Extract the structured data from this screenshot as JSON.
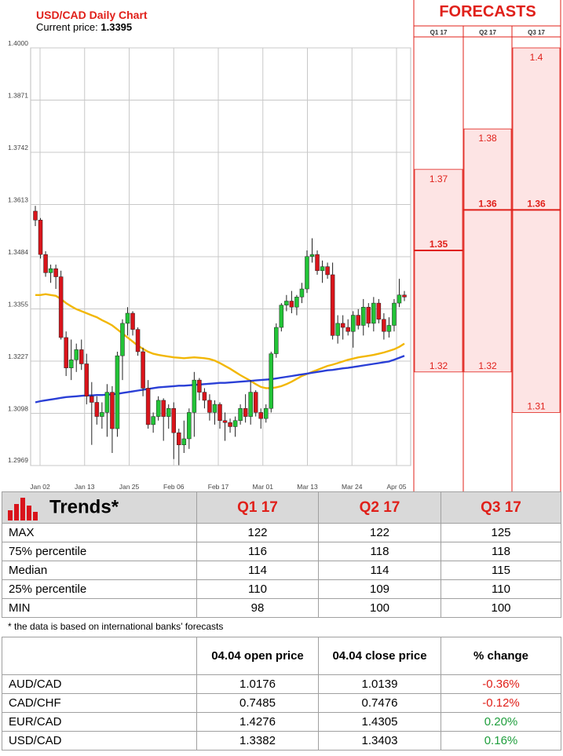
{
  "chart": {
    "title": "USD/CAD Daily Chart",
    "price_label": "Current price:",
    "price_value": "1.3395"
  },
  "forecasts": {
    "title": "FORECASTS",
    "quarters": [
      "Q1 17",
      "Q2 17",
      "Q3 17"
    ],
    "q1": {
      "max": "1.37",
      "median": "1.35",
      "min": "1.32"
    },
    "q2": {
      "max": "1.38",
      "median": "1.36",
      "min": "1.32"
    },
    "q3": {
      "max": "1.4",
      "median": "1.36",
      "min": "1.31"
    }
  },
  "chart_data": {
    "type": "candlestick",
    "title": "USD/CAD Daily Chart",
    "xlabel": "",
    "ylabel": "",
    "ylim": [
      1.2969,
      1.4
    ],
    "y_ticks": [
      "1.4000",
      "1.3871",
      "1.3742",
      "1.3613",
      "1.3484",
      "1.3355",
      "1.3227",
      "1.3098",
      "1.2969"
    ],
    "x_ticks": [
      "Jan 02",
      "Jan 13",
      "Jan 25",
      "Feb 06",
      "Feb 17",
      "Mar 01",
      "Mar 13",
      "Mar 24",
      "Apr 05"
    ],
    "grid": true,
    "up_color": "#22c437",
    "down_color": "#d9141b",
    "candles": [
      {
        "o": 1.3597,
        "h": 1.361,
        "l": 1.356,
        "c": 1.3575
      },
      {
        "o": 1.3575,
        "h": 1.358,
        "l": 1.348,
        "c": 1.349
      },
      {
        "o": 1.349,
        "h": 1.3498,
        "l": 1.3435,
        "c": 1.3445
      },
      {
        "o": 1.3445,
        "h": 1.3465,
        "l": 1.342,
        "c": 1.3455
      },
      {
        "o": 1.3455,
        "h": 1.3465,
        "l": 1.3405,
        "c": 1.3435
      },
      {
        "o": 1.3435,
        "h": 1.345,
        "l": 1.328,
        "c": 1.3285
      },
      {
        "o": 1.3285,
        "h": 1.33,
        "l": 1.319,
        "c": 1.321
      },
      {
        "o": 1.321,
        "h": 1.328,
        "l": 1.318,
        "c": 1.323
      },
      {
        "o": 1.323,
        "h": 1.327,
        "l": 1.32,
        "c": 1.3255
      },
      {
        "o": 1.3255,
        "h": 1.328,
        "l": 1.3205,
        "c": 1.322
      },
      {
        "o": 1.322,
        "h": 1.3245,
        "l": 1.312,
        "c": 1.314
      },
      {
        "o": 1.314,
        "h": 1.3175,
        "l": 1.302,
        "c": 1.3125
      },
      {
        "o": 1.3125,
        "h": 1.314,
        "l": 1.307,
        "c": 1.309
      },
      {
        "o": 1.309,
        "h": 1.3125,
        "l": 1.306,
        "c": 1.31
      },
      {
        "o": 1.31,
        "h": 1.317,
        "l": 1.304,
        "c": 1.315
      },
      {
        "o": 1.315,
        "h": 1.3165,
        "l": 1.3,
        "c": 1.306
      },
      {
        "o": 1.306,
        "h": 1.325,
        "l": 1.304,
        "c": 1.324
      },
      {
        "o": 1.324,
        "h": 1.333,
        "l": 1.318,
        "c": 1.332
      },
      {
        "o": 1.332,
        "h": 1.336,
        "l": 1.329,
        "c": 1.3345
      },
      {
        "o": 1.3345,
        "h": 1.335,
        "l": 1.329,
        "c": 1.3305
      },
      {
        "o": 1.3305,
        "h": 1.331,
        "l": 1.324,
        "c": 1.325
      },
      {
        "o": 1.325,
        "h": 1.326,
        "l": 1.314,
        "c": 1.316
      },
      {
        "o": 1.316,
        "h": 1.318,
        "l": 1.306,
        "c": 1.307
      },
      {
        "o": 1.307,
        "h": 1.31,
        "l": 1.305,
        "c": 1.309
      },
      {
        "o": 1.309,
        "h": 1.314,
        "l": 1.308,
        "c": 1.313
      },
      {
        "o": 1.313,
        "h": 1.3135,
        "l": 1.303,
        "c": 1.309
      },
      {
        "o": 1.309,
        "h": 1.312,
        "l": 1.306,
        "c": 1.311
      },
      {
        "o": 1.311,
        "h": 1.3125,
        "l": 1.2985,
        "c": 1.305
      },
      {
        "o": 1.305,
        "h": 1.306,
        "l": 1.297,
        "c": 1.302
      },
      {
        "o": 1.302,
        "h": 1.308,
        "l": 1.3,
        "c": 1.3035
      },
      {
        "o": 1.3035,
        "h": 1.311,
        "l": 1.301,
        "c": 1.31
      },
      {
        "o": 1.31,
        "h": 1.32,
        "l": 1.304,
        "c": 1.318
      },
      {
        "o": 1.318,
        "h": 1.3185,
        "l": 1.313,
        "c": 1.315
      },
      {
        "o": 1.315,
        "h": 1.316,
        "l": 1.311,
        "c": 1.313
      },
      {
        "o": 1.313,
        "h": 1.3145,
        "l": 1.308,
        "c": 1.31
      },
      {
        "o": 1.31,
        "h": 1.313,
        "l": 1.307,
        "c": 1.312
      },
      {
        "o": 1.312,
        "h": 1.3125,
        "l": 1.306,
        "c": 1.308
      },
      {
        "o": 1.308,
        "h": 1.31,
        "l": 1.303,
        "c": 1.3075
      },
      {
        "o": 1.3075,
        "h": 1.3085,
        "l": 1.305,
        "c": 1.3065
      },
      {
        "o": 1.3065,
        "h": 1.309,
        "l": 1.304,
        "c": 1.308
      },
      {
        "o": 1.308,
        "h": 1.312,
        "l": 1.307,
        "c": 1.311
      },
      {
        "o": 1.311,
        "h": 1.3145,
        "l": 1.3075,
        "c": 1.309
      },
      {
        "o": 1.309,
        "h": 1.318,
        "l": 1.307,
        "c": 1.315
      },
      {
        "o": 1.315,
        "h": 1.3155,
        "l": 1.309,
        "c": 1.31
      },
      {
        "o": 1.31,
        "h": 1.311,
        "l": 1.306,
        "c": 1.3085
      },
      {
        "o": 1.3085,
        "h": 1.312,
        "l": 1.3075,
        "c": 1.311
      },
      {
        "o": 1.311,
        "h": 1.325,
        "l": 1.31,
        "c": 1.3245
      },
      {
        "o": 1.3245,
        "h": 1.332,
        "l": 1.3235,
        "c": 1.331
      },
      {
        "o": 1.331,
        "h": 1.337,
        "l": 1.33,
        "c": 1.3365
      },
      {
        "o": 1.3365,
        "h": 1.339,
        "l": 1.335,
        "c": 1.3375
      },
      {
        "o": 1.3375,
        "h": 1.34,
        "l": 1.3345,
        "c": 1.336
      },
      {
        "o": 1.336,
        "h": 1.339,
        "l": 1.334,
        "c": 1.3385
      },
      {
        "o": 1.3385,
        "h": 1.342,
        "l": 1.337,
        "c": 1.3405
      },
      {
        "o": 1.3405,
        "h": 1.35,
        "l": 1.3395,
        "c": 1.3485
      },
      {
        "o": 1.3485,
        "h": 1.353,
        "l": 1.347,
        "c": 1.349
      },
      {
        "o": 1.349,
        "h": 1.35,
        "l": 1.344,
        "c": 1.345
      },
      {
        "o": 1.345,
        "h": 1.3475,
        "l": 1.342,
        "c": 1.346
      },
      {
        "o": 1.346,
        "h": 1.347,
        "l": 1.343,
        "c": 1.344
      },
      {
        "o": 1.344,
        "h": 1.347,
        "l": 1.328,
        "c": 1.329
      },
      {
        "o": 1.329,
        "h": 1.334,
        "l": 1.327,
        "c": 1.332
      },
      {
        "o": 1.332,
        "h": 1.334,
        "l": 1.328,
        "c": 1.331
      },
      {
        "o": 1.331,
        "h": 1.333,
        "l": 1.329,
        "c": 1.33
      },
      {
        "o": 1.33,
        "h": 1.335,
        "l": 1.326,
        "c": 1.334
      },
      {
        "o": 1.334,
        "h": 1.3355,
        "l": 1.3305,
        "c": 1.3315
      },
      {
        "o": 1.3315,
        "h": 1.338,
        "l": 1.329,
        "c": 1.336
      },
      {
        "o": 1.336,
        "h": 1.337,
        "l": 1.331,
        "c": 1.332
      },
      {
        "o": 1.332,
        "h": 1.3385,
        "l": 1.33,
        "c": 1.337
      },
      {
        "o": 1.337,
        "h": 1.338,
        "l": 1.332,
        "c": 1.333
      },
      {
        "o": 1.333,
        "h": 1.3345,
        "l": 1.328,
        "c": 1.33
      },
      {
        "o": 1.33,
        "h": 1.3335,
        "l": 1.3285,
        "c": 1.3315
      },
      {
        "o": 1.3315,
        "h": 1.338,
        "l": 1.33,
        "c": 1.337
      },
      {
        "o": 1.337,
        "h": 1.343,
        "l": 1.336,
        "c": 1.339
      },
      {
        "o": 1.339,
        "h": 1.34,
        "l": 1.3375,
        "c": 1.3385
      }
    ],
    "series": [
      {
        "color": "#f2b705",
        "values": [
          1.339,
          1.339,
          1.3392,
          1.339,
          1.3388,
          1.338,
          1.337,
          1.3362,
          1.3355,
          1.335,
          1.3345,
          1.334,
          1.3335,
          1.3328,
          1.3322,
          1.3315,
          1.3305,
          1.3295,
          1.3285,
          1.3275,
          1.3265,
          1.3257,
          1.325,
          1.3245,
          1.3242,
          1.324,
          1.3238,
          1.3236,
          1.3235,
          1.3234,
          1.3235,
          1.3236,
          1.3235,
          1.3234,
          1.3232,
          1.3228,
          1.3222,
          1.3215,
          1.3208,
          1.32,
          1.3192,
          1.3185,
          1.3178,
          1.317,
          1.3163,
          1.316,
          1.316,
          1.3162,
          1.3165,
          1.317,
          1.3176,
          1.3183,
          1.319,
          1.3195,
          1.32,
          1.3205,
          1.321,
          1.3215,
          1.3218,
          1.3222,
          1.3226,
          1.323,
          1.3233,
          1.3236,
          1.3238,
          1.324,
          1.3242,
          1.3245,
          1.3248,
          1.3252,
          1.3256,
          1.3262,
          1.327
        ]
      },
      {
        "color": "#2a3fd6",
        "values": [
          1.3125,
          1.3128,
          1.313,
          1.3132,
          1.3134,
          1.3136,
          1.3138,
          1.3139,
          1.314,
          1.3141,
          1.3142,
          1.3142,
          1.3143,
          1.3143,
          1.3144,
          1.3145,
          1.3146,
          1.3148,
          1.315,
          1.3152,
          1.3154,
          1.3156,
          1.3158,
          1.316,
          1.3162,
          1.3163,
          1.3164,
          1.3165,
          1.3166,
          1.3166,
          1.3167,
          1.3168,
          1.3169,
          1.317,
          1.3171,
          1.3172,
          1.3173,
          1.3173,
          1.3174,
          1.3175,
          1.3176,
          1.3177,
          1.3178,
          1.3179,
          1.318,
          1.3181,
          1.3182,
          1.3184,
          1.3186,
          1.3188,
          1.319,
          1.3192,
          1.3194,
          1.3196,
          1.3198,
          1.32,
          1.3202,
          1.3204,
          1.3205,
          1.3207,
          1.3209,
          1.321,
          1.3212,
          1.3214,
          1.3216,
          1.3218,
          1.322,
          1.3222,
          1.3224,
          1.3226,
          1.323,
          1.3235,
          1.324
        ]
      }
    ]
  },
  "trends": {
    "title": "Trends*",
    "headers": [
      "Q1 17",
      "Q2 17",
      "Q3 17"
    ],
    "rows": [
      {
        "label": "MAX",
        "v": [
          "122",
          "122",
          "125"
        ]
      },
      {
        "label": "75% percentile",
        "v": [
          "116",
          "118",
          "118"
        ]
      },
      {
        "label": "Median",
        "v": [
          "114",
          "114",
          "115"
        ]
      },
      {
        "label": "25% percentile",
        "v": [
          "110",
          "109",
          "110"
        ]
      },
      {
        "label": "MIN",
        "v": [
          "98",
          "100",
          "100"
        ]
      }
    ],
    "footnote": "* the data is based on international banks’ forecasts"
  },
  "prices": {
    "headers": [
      "",
      "04.04 open price",
      "04.04 close price",
      "% change"
    ],
    "rows": [
      {
        "pair": "AUD/CAD",
        "open": "1.0176",
        "close": "1.0139",
        "change": "-0.36%",
        "dir": "neg"
      },
      {
        "pair": "CAD/CHF",
        "open": "0.7485",
        "close": "0.7476",
        "change": "-0.12%",
        "dir": "neg"
      },
      {
        "pair": "EUR/CAD",
        "open": "1.4276",
        "close": "1.4305",
        "change": "0.20%",
        "dir": "pos"
      },
      {
        "pair": "USD/CAD",
        "open": "1.3382",
        "close": "1.3403",
        "change": "0.16%",
        "dir": "pos"
      }
    ]
  }
}
